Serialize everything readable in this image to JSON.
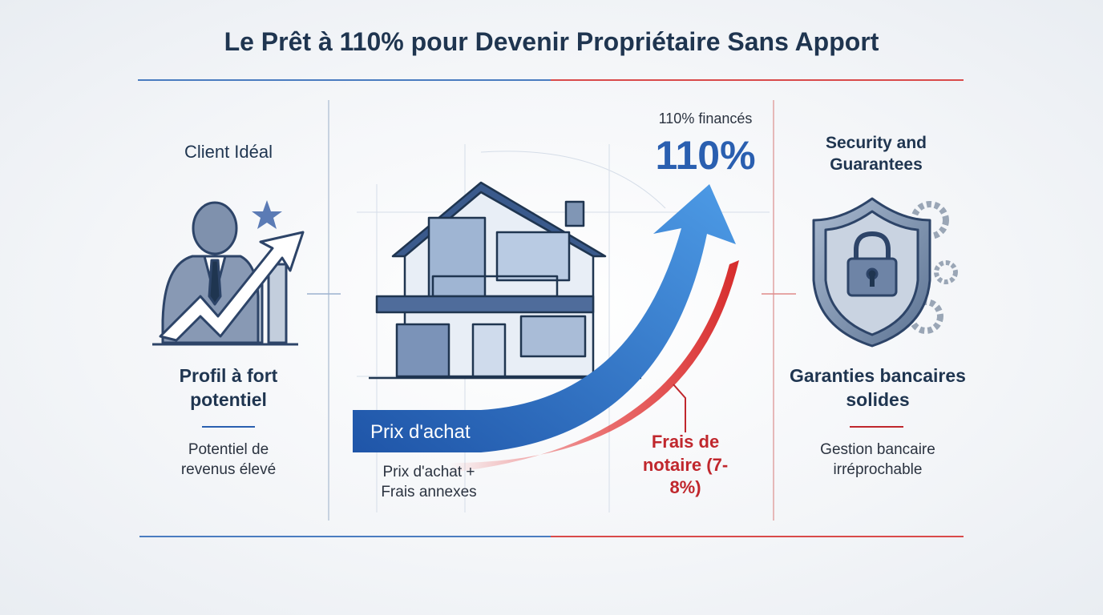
{
  "header": {
    "title": "Le Prêt à 110% pour Devenir Propriétaire Sans Apport"
  },
  "left": {
    "heading": "Client Idéal",
    "subtitle": "Profil à fort potentiel",
    "description": "Potentiel de revenus élevé"
  },
  "center": {
    "caption": "110% financés",
    "big_figure": "110%",
    "band_label": "Prix d'achat",
    "note": "Prix d'achat + Frais annexes",
    "fees": "Frais de notaire (7-8%)"
  },
  "right": {
    "heading": "Security and Guarantees",
    "subtitle": "Garanties bancaires solides",
    "description": "Gestion bancaire irréprochable"
  }
}
